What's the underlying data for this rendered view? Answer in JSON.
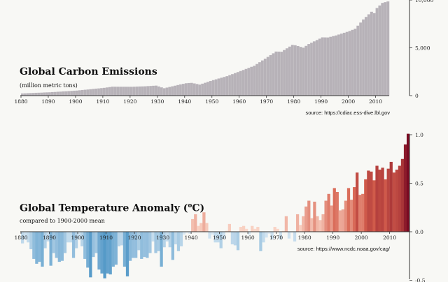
{
  "chart_data": [
    {
      "type": "bar",
      "title": "Global Carbon Emissions",
      "subtitle": "(million metric tons)",
      "source": "source: https://cdiac.ess-dive.lbl.gov",
      "x_start": 1880,
      "x_end": 2014,
      "xticks": [
        1880,
        1890,
        1900,
        1910,
        1920,
        1930,
        1940,
        1950,
        1960,
        1970,
        1980,
        1990,
        2000,
        2010
      ],
      "yticks": [
        {
          "value": 0,
          "label": "0"
        },
        {
          "value": 5000,
          "label": "5,000"
        },
        {
          "value": 10000,
          "label": "10,000"
        }
      ],
      "ylim": [
        0,
        10000
      ],
      "anchors": [
        [
          1880,
          236
        ],
        [
          1890,
          356
        ],
        [
          1900,
          534
        ],
        [
          1910,
          819
        ],
        [
          1913,
          943
        ],
        [
          1920,
          932
        ],
        [
          1925,
          980
        ],
        [
          1929,
          1053
        ],
        [
          1932,
          778
        ],
        [
          1937,
          1115
        ],
        [
          1940,
          1299
        ],
        [
          1942,
          1340
        ],
        [
          1945,
          1160
        ],
        [
          1950,
          1630
        ],
        [
          1955,
          2040
        ],
        [
          1960,
          2577
        ],
        [
          1965,
          3130
        ],
        [
          1970,
          4053
        ],
        [
          1973,
          4614
        ],
        [
          1975,
          4596
        ],
        [
          1979,
          5311
        ],
        [
          1980,
          5275
        ],
        [
          1983,
          5017
        ],
        [
          1985,
          5400
        ],
        [
          1990,
          6098
        ],
        [
          1992,
          6090
        ],
        [
          1995,
          6300
        ],
        [
          2000,
          6765
        ],
        [
          2002,
          7000
        ],
        [
          2005,
          7970
        ],
        [
          2008,
          8776
        ],
        [
          2009,
          8630
        ],
        [
          2010,
          9167
        ],
        [
          2012,
          9700
        ],
        [
          2014,
          9855
        ]
      ],
      "color": "#b7b2b8"
    },
    {
      "type": "bar",
      "title": "Global Temperature Anomaly (",
      "title_unit": "o",
      "title_end": "C)",
      "subtitle": "compared to 1900-2000 mean",
      "source": "source: https://www.ncdc.noaa.gov/cag/",
      "x_start": 1880,
      "x_end": 2016,
      "xticks": [
        1880,
        1890,
        1900,
        1910,
        1920,
        1930,
        1940,
        1950,
        1960,
        1970,
        1980,
        1990,
        2000,
        2010
      ],
      "yticks": [
        {
          "value": -0.5,
          "label": "-0.5"
        },
        {
          "value": 0,
          "label": "0.0"
        },
        {
          "value": 0.5,
          "label": "0.5"
        },
        {
          "value": 1.0,
          "label": "1.0"
        }
      ],
      "ylim": [
        -0.5,
        1.0
      ],
      "values": [
        -0.12,
        -0.08,
        -0.11,
        -0.18,
        -0.28,
        -0.33,
        -0.31,
        -0.36,
        -0.17,
        -0.1,
        -0.35,
        -0.22,
        -0.27,
        -0.31,
        -0.3,
        -0.22,
        -0.11,
        -0.11,
        -0.27,
        -0.17,
        -0.08,
        -0.15,
        -0.28,
        -0.37,
        -0.47,
        -0.26,
        -0.22,
        -0.39,
        -0.43,
        -0.48,
        -0.43,
        -0.44,
        -0.36,
        -0.34,
        -0.15,
        -0.14,
        -0.36,
        -0.46,
        -0.3,
        -0.27,
        -0.27,
        -0.19,
        -0.28,
        -0.26,
        -0.27,
        -0.22,
        -0.1,
        -0.22,
        -0.2,
        -0.36,
        -0.16,
        -0.1,
        -0.16,
        -0.29,
        -0.13,
        -0.2,
        -0.15,
        -0.03,
        -0.01,
        -0.02,
        0.13,
        0.18,
        0.06,
        0.09,
        0.2,
        0.09,
        -0.07,
        -0.03,
        -0.11,
        -0.11,
        -0.17,
        -0.07,
        0.01,
        0.08,
        -0.13,
        -0.14,
        -0.19,
        0.05,
        0.06,
        0.03,
        -0.03,
        0.06,
        0.03,
        0.05,
        -0.2,
        -0.11,
        -0.06,
        -0.02,
        -0.08,
        0.05,
        0.03,
        -0.08,
        0.01,
        0.16,
        -0.07,
        -0.01,
        -0.1,
        0.18,
        0.07,
        0.16,
        0.26,
        0.32,
        0.14,
        0.31,
        0.16,
        0.12,
        0.18,
        0.32,
        0.39,
        0.27,
        0.45,
        0.41,
        0.22,
        0.23,
        0.32,
        0.45,
        0.33,
        0.46,
        0.61,
        0.38,
        0.39,
        0.54,
        0.63,
        0.62,
        0.53,
        0.68,
        0.64,
        0.66,
        0.54,
        0.65,
        0.72,
        0.61,
        0.64,
        0.68,
        0.75,
        0.9,
        1.01
      ],
      "color_range": [
        "#2166ac",
        "#67001f"
      ]
    }
  ]
}
